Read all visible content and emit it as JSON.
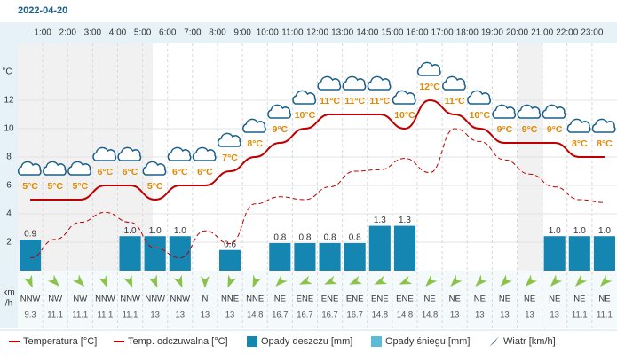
{
  "chart_data": {
    "type": "meteogram",
    "title": "2022-04-20",
    "y_axis_label": "°C",
    "ylim": [
      0,
      16
    ],
    "yticks": [
      2,
      4,
      6,
      8,
      10,
      12
    ],
    "y2lim": [
      0,
      6.6
    ],
    "hour_labels": [
      "1:00",
      "2:00",
      "3:00",
      "4:00",
      "5:00",
      "6:00",
      "7:00",
      "8:00",
      "9:00",
      "10:00",
      "11:00",
      "12:00",
      "13:00",
      "14:00",
      "15:00",
      "16:00",
      "17:00",
      "18:00",
      "19:00",
      "20:00",
      "21:00",
      "22:00",
      "23:00"
    ],
    "series": [
      {
        "name": "Temperatura [°C]",
        "color": "#c00000",
        "values": [
          5,
          5,
          5,
          6,
          6,
          5,
          6,
          6,
          7,
          8,
          9,
          10,
          11,
          11,
          11,
          10,
          12,
          11,
          10,
          9,
          9,
          9,
          8,
          8
        ],
        "value_labels": [
          "5°C",
          "5°C",
          "5°C",
          "6°C",
          "6°C",
          "5°C",
          "6°C",
          "6°C",
          "7°C",
          "8°C",
          "9°C",
          "10°C",
          "11°C",
          "11°C",
          "11°C",
          "10°C",
          "12°C",
          "11°C",
          "10°C",
          "9°C",
          "9°C",
          "9°C",
          "8°C",
          "8°C"
        ]
      },
      {
        "name": "Temp. odczuwalna [°C]",
        "color": "#c00000",
        "values": [
          0.9,
          2.2,
          3.4,
          4.1,
          3.4,
          1.6,
          0.9,
          2.8,
          1.9,
          4.7,
          5.2,
          5.0,
          5.9,
          7.0,
          7.1,
          7.9,
          6.9,
          10.0,
          9.1,
          7.8,
          6.8,
          5.9,
          5.0,
          4.8
        ]
      },
      {
        "name": "Opady deszczu [mm]",
        "color": "#1585b2",
        "axis": "y2",
        "values": [
          0.9,
          0,
          0,
          0,
          1.0,
          1.0,
          1.0,
          0,
          0.6,
          0,
          0.8,
          0.8,
          0.8,
          0.8,
          1.3,
          1.3,
          0,
          0,
          0,
          0,
          0,
          1.0,
          1.0,
          1.0
        ],
        "value_labels": [
          "0.9",
          null,
          null,
          null,
          "1.0",
          "1.0",
          "1.0",
          null,
          "0.6",
          null,
          "0.8",
          "0.8",
          "0.8",
          "0.8",
          "1.3",
          "1.3",
          null,
          null,
          null,
          null,
          null,
          "1.0",
          "1.0",
          "1.0"
        ]
      },
      {
        "name": "Opady śniegu [mm]",
        "color": "#5bbcd6",
        "axis": "y2",
        "values": [
          0,
          0,
          0,
          0,
          0,
          0,
          0,
          0,
          0,
          0,
          0,
          0,
          0,
          0,
          0,
          0,
          0,
          0,
          0,
          0,
          0,
          0,
          0,
          0
        ]
      }
    ],
    "wind": {
      "name": "Wiatr [km/h]",
      "unit_label": [
        "km",
        "/h"
      ],
      "color": "#8bc34a",
      "directions": [
        "NNW",
        "NW",
        "NW",
        "NNW",
        "NNW",
        "NNW",
        "NNW",
        "N",
        "NNE",
        "NNE",
        "NE",
        "ENE",
        "ENE",
        "ENE",
        "ENE",
        "ENE",
        "NE",
        "NE",
        "NE",
        "NE",
        "NE",
        "NE",
        "NE",
        "NE"
      ],
      "speeds": [
        9.3,
        11.1,
        11.1,
        11.1,
        11.1,
        13,
        13,
        13,
        13,
        14.8,
        16.7,
        16.7,
        16.7,
        16.7,
        14.8,
        14.8,
        14.8,
        13,
        13,
        13,
        13,
        13,
        11.1,
        11.1
      ]
    }
  }
}
